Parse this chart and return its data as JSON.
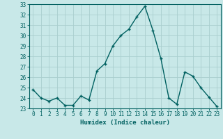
{
  "x": [
    0,
    1,
    2,
    3,
    4,
    5,
    6,
    7,
    8,
    9,
    10,
    11,
    12,
    13,
    14,
    15,
    16,
    17,
    18,
    19,
    20,
    21,
    22,
    23
  ],
  "y": [
    24.8,
    24.0,
    23.7,
    24.0,
    23.3,
    23.3,
    24.2,
    23.8,
    26.6,
    27.3,
    29.0,
    30.0,
    30.6,
    31.8,
    32.8,
    30.5,
    27.8,
    24.0,
    23.4,
    26.5,
    26.1,
    25.0,
    24.1,
    23.2
  ],
  "line_color": "#006060",
  "marker": "+",
  "bg_color": "#c8e8e8",
  "grid_color": "#aacece",
  "xlabel": "Humidex (Indice chaleur)",
  "xlim": [
    -0.5,
    23.5
  ],
  "ylim": [
    23,
    33
  ],
  "yticks": [
    23,
    24,
    25,
    26,
    27,
    28,
    29,
    30,
    31,
    32,
    33
  ],
  "xticks": [
    0,
    1,
    2,
    3,
    4,
    5,
    6,
    7,
    8,
    9,
    10,
    11,
    12,
    13,
    14,
    15,
    16,
    17,
    18,
    19,
    20,
    21,
    22,
    23
  ],
  "tick_color": "#006060",
  "label_color": "#006060",
  "axis_color": "#006060",
  "fontsize_ticks": 5.5,
  "fontsize_xlabel": 6.5,
  "linewidth": 1.0,
  "markersize": 3.5,
  "markeredgewidth": 1.0
}
